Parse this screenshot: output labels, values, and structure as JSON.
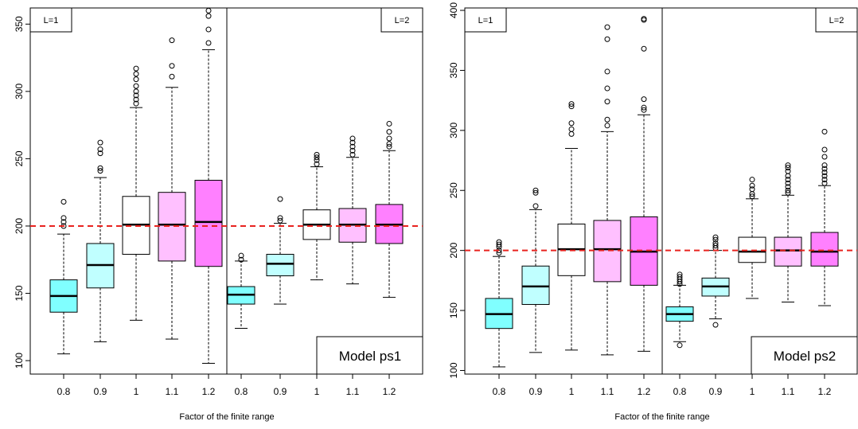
{
  "figure": {
    "xlabel": "Factor of the finite range"
  },
  "colors": {
    "0.8": "#80ffff",
    "0.9": "#c0ffff",
    "1": "#ffffff",
    "1.1": "#ffc0ff",
    "1.2": "#ff80ff",
    "reference_line": "#e8231f"
  },
  "chart_data": [
    {
      "type": "box",
      "title": "",
      "model_label": "Model ps1",
      "xlabel": "Factor of the finite range",
      "ylabel": "",
      "ylim": [
        90,
        362
      ],
      "yticks": [
        100,
        150,
        200,
        250,
        300,
        350
      ],
      "reference_line": 200,
      "groups": [
        {
          "label": "L=1",
          "boxes": [
            {
              "x": "0.8",
              "min": 105,
              "q1": 136,
              "median": 148,
              "q3": 160,
              "max": 194,
              "outliers": [
                200,
                203,
                206,
                218
              ]
            },
            {
              "x": "0.9",
              "min": 114,
              "q1": 154,
              "median": 171,
              "q3": 187,
              "max": 236,
              "outliers": [
                241,
                243,
                254,
                257,
                262
              ]
            },
            {
              "x": "1",
              "min": 130,
              "q1": 179,
              "median": 201,
              "q3": 222,
              "max": 288,
              "outliers": [
                291,
                294,
                297,
                300,
                304,
                309,
                313,
                317
              ]
            },
            {
              "x": "1.1",
              "min": 116,
              "q1": 174,
              "median": 201,
              "q3": 225,
              "max": 303,
              "outliers": [
                311,
                319,
                338
              ]
            },
            {
              "x": "1.2",
              "min": 98,
              "q1": 170,
              "median": 203,
              "q3": 234,
              "max": 331,
              "outliers": [
                336,
                346,
                356,
                360
              ]
            }
          ]
        },
        {
          "label": "L=2",
          "boxes": [
            {
              "x": "0.8",
              "min": 124,
              "q1": 142,
              "median": 149,
              "q3": 155,
              "max": 174,
              "outliers": [
                175,
                178
              ]
            },
            {
              "x": "0.9",
              "min": 142,
              "q1": 163,
              "median": 172,
              "q3": 179,
              "max": 202,
              "outliers": [
                204,
                206,
                220
              ]
            },
            {
              "x": "1",
              "min": 160,
              "q1": 190,
              "median": 201,
              "q3": 212,
              "max": 244,
              "outliers": [
                246,
                249,
                251,
                253
              ]
            },
            {
              "x": "1.1",
              "min": 157,
              "q1": 188,
              "median": 201,
              "q3": 213,
              "max": 251,
              "outliers": [
                253,
                256,
                259,
                262,
                265
              ]
            },
            {
              "x": "1.2",
              "min": 147,
              "q1": 187,
              "median": 201,
              "q3": 216,
              "max": 256,
              "outliers": [
                259,
                261,
                265,
                270,
                276
              ]
            }
          ]
        }
      ]
    },
    {
      "type": "box",
      "title": "",
      "model_label": "Model ps2",
      "xlabel": "Factor of the finite range",
      "ylabel": "",
      "ylim": [
        97,
        402
      ],
      "yticks": [
        100,
        150,
        200,
        250,
        300,
        350,
        400
      ],
      "reference_line": 200,
      "groups": [
        {
          "label": "L=1",
          "boxes": [
            {
              "x": "0.8",
              "min": 103,
              "q1": 135,
              "median": 147,
              "q3": 160,
              "max": 195,
              "outliers": [
                198,
                200,
                203,
                205,
                207
              ]
            },
            {
              "x": "0.9",
              "min": 115,
              "q1": 155,
              "median": 170,
              "q3": 187,
              "max": 234,
              "outliers": [
                237,
                248,
                250
              ]
            },
            {
              "x": "1",
              "min": 117,
              "q1": 179,
              "median": 201,
              "q3": 222,
              "max": 285,
              "outliers": [
                297,
                301,
                306,
                320,
                322
              ]
            },
            {
              "x": "1.1",
              "min": 113,
              "q1": 174,
              "median": 201,
              "q3": 225,
              "max": 299,
              "outliers": [
                304,
                309,
                324,
                335,
                349,
                376,
                386
              ]
            },
            {
              "x": "1.2",
              "min": 116,
              "q1": 171,
              "median": 199,
              "q3": 228,
              "max": 313,
              "outliers": [
                317,
                319,
                326,
                368,
                392,
                393
              ]
            }
          ]
        },
        {
          "label": "L=2",
          "boxes": [
            {
              "x": "0.8",
              "min": 124,
              "q1": 141,
              "median": 147,
              "q3": 153,
              "max": 171,
              "outliers": [
                121,
                172,
                174,
                176,
                178,
                180
              ]
            },
            {
              "x": "0.9",
              "min": 143,
              "q1": 162,
              "median": 170,
              "q3": 177,
              "max": 200,
              "outliers": [
                138,
                202,
                204,
                206,
                209,
                211
              ]
            },
            {
              "x": "1",
              "min": 160,
              "q1": 190,
              "median": 199,
              "q3": 211,
              "max": 243,
              "outliers": [
                245,
                247,
                251,
                254,
                259
              ]
            },
            {
              "x": "1.1",
              "min": 157,
              "q1": 187,
              "median": 200,
              "q3": 211,
              "max": 246,
              "outliers": [
                248,
                250,
                253,
                256,
                259,
                262,
                266,
                269,
                271
              ]
            },
            {
              "x": "1.2",
              "min": 154,
              "q1": 187,
              "median": 199,
              "q3": 215,
              "max": 254,
              "outliers": [
                256,
                259,
                262,
                265,
                268,
                271,
                278,
                284,
                299
              ]
            }
          ]
        }
      ]
    }
  ]
}
